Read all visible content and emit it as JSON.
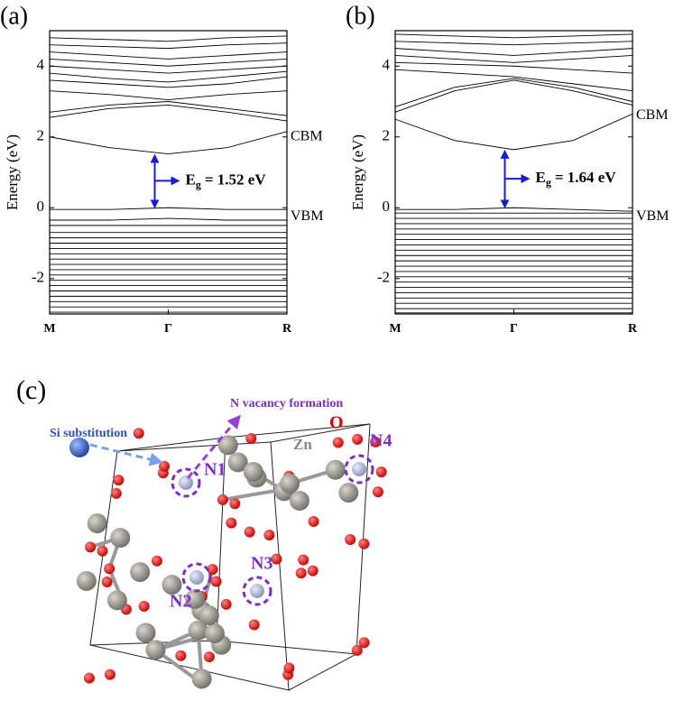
{
  "chart_data": [
    {
      "type": "line",
      "panel_label": "(a)",
      "ylabel": "Energy (eV)",
      "color": "#000000",
      "x": [
        0,
        0.5,
        1,
        1.5,
        2
      ],
      "xlim": [
        0,
        2
      ],
      "xticks": [
        {
          "value": 0,
          "label": "M"
        },
        {
          "value": 1,
          "label": "Γ"
        },
        {
          "value": 2,
          "label": "R"
        }
      ],
      "ylim": [
        -3,
        5
      ],
      "yticks": [
        -2,
        0,
        2,
        4
      ],
      "cbm_label": "CBM",
      "vbm_label": "VBM",
      "gap_label": {
        "symbol": "E",
        "subscript": "g",
        "text": "= 1.52 eV"
      },
      "series": [
        {
          "values": [
            2.0,
            1.7,
            1.52,
            1.7,
            2.15
          ]
        },
        {
          "values": [
            2.55,
            2.8,
            2.9,
            2.7,
            2.45
          ]
        },
        {
          "values": [
            2.7,
            2.9,
            3.0,
            2.8,
            2.6
          ]
        },
        {
          "values": [
            3.3,
            3.2,
            3.05,
            3.2,
            3.3
          ]
        },
        {
          "values": [
            3.6,
            3.5,
            3.4,
            3.5,
            3.7
          ]
        },
        {
          "values": [
            3.8,
            3.65,
            3.55,
            3.7,
            3.85
          ]
        },
        {
          "values": [
            4.0,
            3.9,
            3.8,
            3.9,
            4.0
          ]
        },
        {
          "values": [
            4.2,
            4.1,
            4.0,
            4.1,
            4.2
          ]
        },
        {
          "values": [
            4.4,
            4.3,
            4.2,
            4.3,
            4.4
          ]
        },
        {
          "values": [
            4.6,
            4.55,
            4.5,
            4.6,
            4.65
          ]
        },
        {
          "values": [
            4.8,
            4.75,
            4.7,
            4.8,
            4.85
          ]
        },
        {
          "values": [
            -0.05,
            -0.05,
            0,
            -0.05,
            -0.05
          ]
        },
        {
          "values": [
            -0.35,
            -0.35,
            -0.3,
            -0.35,
            -0.35
          ]
        },
        {
          "values": [
            -0.5,
            -0.5,
            -0.5,
            -0.5,
            -0.5
          ]
        },
        {
          "values": [
            -0.7,
            -0.7,
            -0.7,
            -0.7,
            -0.7
          ]
        },
        {
          "values": [
            -0.85,
            -0.85,
            -0.85,
            -0.85,
            -0.85
          ]
        },
        {
          "values": [
            -1.0,
            -1.0,
            -1.0,
            -1.0,
            -1.0
          ]
        },
        {
          "values": [
            -1.15,
            -1.15,
            -1.15,
            -1.15,
            -1.15
          ]
        },
        {
          "values": [
            -1.3,
            -1.3,
            -1.3,
            -1.3,
            -1.3
          ]
        },
        {
          "values": [
            -1.45,
            -1.45,
            -1.45,
            -1.45,
            -1.45
          ]
        },
        {
          "values": [
            -1.6,
            -1.6,
            -1.6,
            -1.6,
            -1.6
          ]
        },
        {
          "values": [
            -1.75,
            -1.75,
            -1.75,
            -1.75,
            -1.75
          ]
        },
        {
          "values": [
            -1.9,
            -1.9,
            -1.9,
            -1.9,
            -1.9
          ]
        },
        {
          "values": [
            -2.05,
            -2.05,
            -2.05,
            -2.05,
            -2.05
          ]
        },
        {
          "values": [
            -2.2,
            -2.2,
            -2.2,
            -2.2,
            -2.2
          ]
        },
        {
          "values": [
            -2.35,
            -2.35,
            -2.35,
            -2.35,
            -2.35
          ]
        },
        {
          "values": [
            -2.5,
            -2.5,
            -2.5,
            -2.5,
            -2.5
          ]
        },
        {
          "values": [
            -2.65,
            -2.65,
            -2.65,
            -2.65,
            -2.65
          ]
        },
        {
          "values": [
            -2.8,
            -2.8,
            -2.8,
            -2.8,
            -2.8
          ]
        },
        {
          "values": [
            -2.95,
            -2.95,
            -2.95,
            -2.95,
            -2.95
          ]
        }
      ]
    },
    {
      "type": "line",
      "panel_label": "(b)",
      "ylabel": "Energy (eV)",
      "color": "#000000",
      "x": [
        0,
        0.5,
        1,
        1.5,
        2
      ],
      "xlim": [
        0,
        2
      ],
      "xticks": [
        {
          "value": 0,
          "label": "M"
        },
        {
          "value": 1,
          "label": "Γ"
        },
        {
          "value": 2,
          "label": "R"
        }
      ],
      "ylim": [
        -3,
        5
      ],
      "yticks": [
        -2,
        0,
        2,
        4
      ],
      "cbm_label": "CBM",
      "vbm_label": "VBM",
      "gap_label": {
        "symbol": "E",
        "subscript": "g",
        "text": "= 1.64 eV"
      },
      "series": [
        {
          "values": [
            2.5,
            1.9,
            1.64,
            1.9,
            2.65
          ]
        },
        {
          "values": [
            2.7,
            3.3,
            3.6,
            3.3,
            2.9
          ]
        },
        {
          "values": [
            2.85,
            3.4,
            3.65,
            3.4,
            3.0
          ]
        },
        {
          "values": [
            3.9,
            3.8,
            3.7,
            3.5,
            3.3
          ]
        },
        {
          "values": [
            4.1,
            4.05,
            4.0,
            3.9,
            3.8
          ]
        },
        {
          "values": [
            4.3,
            4.2,
            4.1,
            4.2,
            4.3
          ]
        },
        {
          "values": [
            4.5,
            4.4,
            4.3,
            4.4,
            4.5
          ]
        },
        {
          "values": [
            4.7,
            4.65,
            4.6,
            4.65,
            4.7
          ]
        },
        {
          "values": [
            4.9,
            4.85,
            4.8,
            4.85,
            4.9
          ]
        },
        {
          "values": [
            -0.05,
            -0.05,
            0,
            -0.05,
            -0.1
          ]
        },
        {
          "values": [
            -0.15,
            -0.15,
            -0.15,
            -0.15,
            -0.15
          ]
        },
        {
          "values": [
            -0.3,
            -0.3,
            -0.3,
            -0.3,
            -0.3
          ]
        },
        {
          "values": [
            -0.45,
            -0.45,
            -0.45,
            -0.45,
            -0.45
          ]
        },
        {
          "values": [
            -0.6,
            -0.6,
            -0.6,
            -0.6,
            -0.6
          ]
        },
        {
          "values": [
            -0.75,
            -0.75,
            -0.75,
            -0.75,
            -0.75
          ]
        },
        {
          "values": [
            -0.9,
            -0.9,
            -0.9,
            -0.9,
            -0.9
          ]
        },
        {
          "values": [
            -1.05,
            -1.05,
            -1.05,
            -1.05,
            -1.05
          ]
        },
        {
          "values": [
            -1.2,
            -1.2,
            -1.2,
            -1.2,
            -1.2
          ]
        },
        {
          "values": [
            -1.35,
            -1.35,
            -1.35,
            -1.35,
            -1.35
          ]
        },
        {
          "values": [
            -1.5,
            -1.5,
            -1.5,
            -1.5,
            -1.5
          ]
        },
        {
          "values": [
            -1.65,
            -1.65,
            -1.65,
            -1.65,
            -1.65
          ]
        },
        {
          "values": [
            -1.8,
            -1.8,
            -1.8,
            -1.8,
            -1.8
          ]
        },
        {
          "values": [
            -1.95,
            -1.95,
            -1.95,
            -1.95,
            -1.95
          ]
        },
        {
          "values": [
            -2.1,
            -2.1,
            -2.1,
            -2.1,
            -2.1
          ]
        },
        {
          "values": [
            -2.25,
            -2.25,
            -2.25,
            -2.25,
            -2.25
          ]
        },
        {
          "values": [
            -2.4,
            -2.4,
            -2.4,
            -2.4,
            -2.4
          ]
        },
        {
          "values": [
            -2.55,
            -2.55,
            -2.55,
            -2.55,
            -2.55
          ]
        },
        {
          "values": [
            -2.7,
            -2.7,
            -2.7,
            -2.7,
            -2.7
          ]
        },
        {
          "values": [
            -2.85,
            -2.85,
            -2.85,
            -2.85,
            -2.85
          ]
        },
        {
          "values": [
            -2.97,
            -2.97,
            -2.97,
            -2.97,
            -2.97
          ]
        }
      ]
    }
  ],
  "structure": {
    "panel_label": "(c)",
    "si_label": "Si substitution",
    "vacancy_label": "N vacancy formation",
    "o_label": "O",
    "zn_label": "Zn",
    "n_labels": [
      "N1",
      "N2",
      "N3",
      "N4"
    ]
  }
}
